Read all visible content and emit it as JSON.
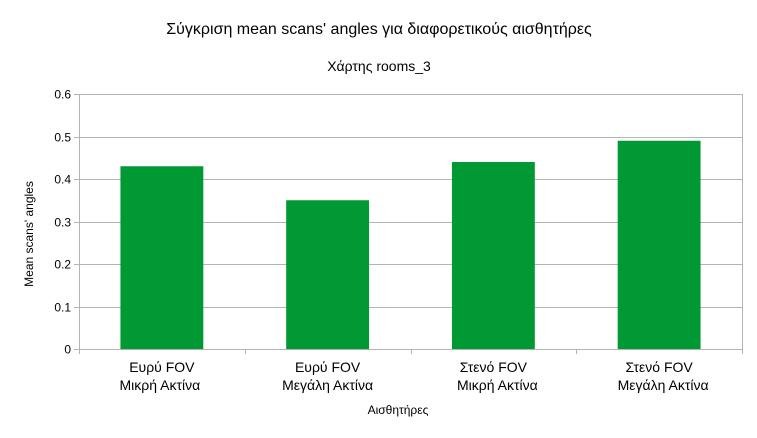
{
  "chart_data": {
    "type": "bar",
    "title": "Σύγκριση mean scans' angles για διαφορετικούς αισθητήρες",
    "subtitle": "Χάρτης rooms_3",
    "xlabel": "Αισθητήρες",
    "ylabel": "Mean scans' angles",
    "categories": [
      [
        "Ευρύ FOV",
        "Μικρή Ακτίνα"
      ],
      [
        "Ευρύ FOV",
        "Μεγάλη Ακτίνα"
      ],
      [
        "Στενό FOV",
        "Μικρή Ακτίνα"
      ],
      [
        "Στενό FOV",
        "Μεγάλη Ακτίνα"
      ]
    ],
    "values": [
      0.43,
      0.35,
      0.44,
      0.49
    ],
    "ylim": [
      0,
      0.6
    ],
    "yticks": [
      "0",
      "0.1",
      "0.2",
      "0.3",
      "0.4",
      "0.5",
      "0.6"
    ],
    "grid": true,
    "legend": "none",
    "bar_color": "#009933"
  }
}
